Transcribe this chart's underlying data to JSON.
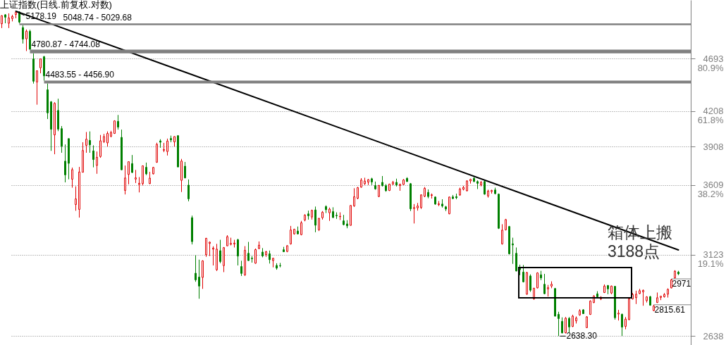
{
  "chart_data": {
    "type": "candlestick",
    "title": "上证指数(日线.前复权.对数)",
    "categories": [
      null,
      null,
      null,
      null,
      null,
      null,
      null,
      null,
      null,
      null,
      null,
      null,
      null,
      null,
      null,
      null,
      null,
      null,
      null,
      null,
      null,
      null,
      null,
      null,
      null,
      null,
      null,
      null,
      null,
      null,
      null,
      null,
      null,
      null,
      null,
      null,
      null,
      null,
      null,
      null,
      null,
      null,
      null,
      null,
      null,
      null,
      null,
      null,
      null,
      null,
      null,
      null,
      null,
      null,
      null,
      null,
      null,
      null,
      null,
      null,
      null,
      null,
      null,
      null,
      null,
      null,
      null,
      null,
      null,
      null,
      null,
      null,
      null,
      null,
      null,
      null,
      null,
      null,
      null,
      null,
      null,
      null,
      null,
      null,
      null,
      null,
      null,
      null,
      null,
      null,
      null,
      null,
      null,
      null,
      null,
      null,
      null,
      null,
      null,
      null,
      null,
      null,
      null,
      null,
      null,
      null,
      null,
      null,
      null,
      null,
      null,
      null,
      null,
      null,
      null,
      null,
      null,
      null,
      null,
      null,
      null,
      null,
      null,
      null,
      null,
      null,
      null,
      null,
      null,
      null,
      null,
      null,
      null,
      null,
      null,
      null,
      null,
      null,
      null,
      null,
      null,
      null,
      null,
      null,
      null,
      null,
      null,
      null,
      null,
      null,
      null,
      null,
      null,
      null,
      null,
      null,
      null,
      null,
      null,
      null,
      null,
      null,
      null,
      null,
      null,
      null,
      null,
      null,
      null,
      null,
      null,
      null,
      null,
      null,
      null,
      null,
      null,
      null,
      null,
      null,
      null,
      null,
      null,
      null,
      null,
      null,
      null,
      null,
      null,
      null,
      null,
      null,
      null
    ],
    "ohlc": [
      [
        5045,
        5135,
        5000,
        5130
      ],
      [
        5140,
        5147,
        5050,
        5114
      ],
      [
        5050,
        5155,
        5000,
        5106
      ],
      [
        5100,
        5140,
        5070,
        5122
      ],
      [
        5143,
        5178.19,
        5103,
        5166
      ],
      [
        5170,
        5177,
        5048.74,
        5063
      ],
      [
        5005,
        5029.68,
        4842,
        4887
      ],
      [
        4890,
        4985,
        4767,
        4968
      ],
      [
        4966,
        4983,
        4780.87,
        4785
      ],
      [
        4690,
        4744.08,
        4456,
        4478
      ],
      [
        4471,
        4577,
        4265,
        4576
      ],
      [
        4604,
        4692,
        4552,
        4690
      ],
      [
        4711,
        4720,
        4483.55,
        4528
      ],
      [
        4399,
        4456.9,
        4140,
        4193
      ],
      [
        4290,
        4297,
        3875,
        4053
      ],
      [
        4006,
        4287,
        3848,
        4277
      ],
      [
        4214,
        4318,
        4037,
        4054
      ],
      [
        4058,
        4080,
        3860,
        3913
      ],
      [
        3793,
        3927,
        3630,
        3687
      ],
      [
        3975,
        3976,
        3653,
        3776
      ],
      [
        3654,
        3743,
        3590,
        3727
      ],
      [
        3467,
        3600,
        3422,
        3507
      ],
      [
        3432,
        3748,
        3374,
        3709
      ],
      [
        3707,
        3945,
        3705,
        3878
      ],
      [
        3920,
        4030,
        3860,
        3970
      ],
      [
        3960,
        4035,
        3860,
        3924
      ],
      [
        3875,
        3920,
        3745,
        3806
      ],
      [
        3760,
        3870,
        3695,
        3823
      ],
      [
        3830,
        4005,
        3820,
        3957
      ],
      [
        3950,
        4014,
        3939,
        3992
      ],
      [
        3940,
        4035,
        3910,
        4018
      ],
      [
        3995,
        4040,
        3985,
        4026
      ],
      [
        4018,
        4129,
        4014,
        4124
      ],
      [
        4120,
        4175,
        4050,
        4071
      ],
      [
        3985,
        4050,
        3723,
        3726
      ],
      [
        3570,
        3759,
        3540,
        3663
      ],
      [
        3690,
        3790,
        3615,
        3789
      ],
      [
        3774,
        3842,
        3700,
        3706
      ],
      [
        3655,
        3725,
        3625,
        3664
      ],
      [
        3614,
        3670,
        3555,
        3623
      ],
      [
        3621,
        3757,
        3607,
        3757
      ],
      [
        3745,
        3782,
        3685,
        3695
      ],
      [
        3621,
        3710,
        3617,
        3662
      ],
      [
        3695,
        3749,
        3690,
        3744
      ],
      [
        3785,
        3941,
        3780,
        3928
      ],
      [
        3956,
        3970,
        3900,
        3945
      ],
      [
        3880,
        3940,
        3865,
        3886
      ],
      [
        3870,
        3975,
        3838,
        3955
      ],
      [
        3976,
        4000,
        3945,
        3965
      ],
      [
        3948,
        3994,
        3910,
        3992
      ],
      [
        3999,
        4004,
        3746,
        3748
      ],
      [
        3645,
        3811,
        3558,
        3794
      ],
      [
        3754,
        3787,
        3660,
        3664
      ],
      [
        3609,
        3652,
        3490,
        3508
      ],
      [
        3373,
        3388,
        3191,
        3210
      ],
      [
        3006,
        3120,
        2953,
        2965
      ],
      [
        2982,
        3092,
        2851,
        2927
      ],
      [
        2980,
        3088,
        2910,
        3084
      ],
      [
        3123,
        3235,
        3110,
        3232
      ],
      [
        3198,
        3211,
        3115,
        3206
      ],
      [
        3160,
        3179,
        3055,
        3167
      ],
      [
        3028,
        3195,
        3020,
        3160
      ],
      [
        3150,
        3222,
        3069,
        3080
      ],
      [
        3054,
        3174,
        3013,
        3170
      ],
      [
        3182,
        3253,
        3180,
        3243
      ],
      [
        3192,
        3236,
        3185,
        3198
      ],
      [
        3194,
        3222,
        3171,
        3200
      ],
      [
        3222,
        3229,
        3055,
        3115
      ],
      [
        3048,
        3085,
        2989,
        3005
      ],
      [
        2996,
        3180,
        2989,
        3152
      ],
      [
        3133,
        3208,
        3085,
        3086
      ],
      [
        3101,
        3115,
        3073,
        3098
      ],
      [
        3069,
        3164,
        3066,
        3157
      ],
      [
        3164,
        3211,
        3160,
        3186
      ],
      [
        3141,
        3167,
        3107,
        3116
      ],
      [
        3124,
        3149,
        3110,
        3143
      ],
      [
        3130,
        3151,
        3067,
        3092
      ],
      [
        3086,
        3102,
        3043,
        3101
      ],
      [
        3055,
        3069,
        3028,
        3038
      ],
      [
        3054,
        3071,
        3043,
        3053
      ],
      [
        3156,
        3175,
        3141,
        3143
      ],
      [
        3145,
        3185,
        3140,
        3183
      ],
      [
        3195,
        3316,
        3190,
        3288
      ],
      [
        3262,
        3297,
        3257,
        3293
      ],
      [
        3281,
        3312,
        3258,
        3262
      ],
      [
        3257,
        3351,
        3252,
        3338
      ],
      [
        3357,
        3398,
        3348,
        3391
      ],
      [
        3400,
        3423,
        3360,
        3387
      ],
      [
        3378,
        3430,
        3360,
        3425
      ],
      [
        3428,
        3452,
        3273,
        3321
      ],
      [
        3290,
        3370,
        3281,
        3369
      ],
      [
        3373,
        3420,
        3360,
        3412
      ],
      [
        3452,
        3461,
        3406,
        3430
      ],
      [
        3408,
        3445,
        3351,
        3434
      ],
      [
        3416,
        3447,
        3370,
        3375
      ],
      [
        3390,
        3411,
        3365,
        3387
      ],
      [
        3380,
        3411,
        3357,
        3383
      ],
      [
        3351,
        3393,
        3320,
        3325
      ],
      [
        3330,
        3356,
        3300,
        3317
      ],
      [
        3320,
        3462,
        3318,
        3460
      ],
      [
        3457,
        3586,
        3450,
        3523
      ],
      [
        3512,
        3596,
        3505,
        3590
      ],
      [
        3594,
        3662,
        3590,
        3647
      ],
      [
        3620,
        3665,
        3610,
        3640
      ],
      [
        3632,
        3655,
        3610,
        3650
      ],
      [
        3657,
        3665,
        3610,
        3633
      ],
      [
        3606,
        3636,
        3575,
        3581
      ],
      [
        3525,
        3610,
        3520,
        3607
      ],
      [
        3630,
        3678,
        3599,
        3605
      ],
      [
        3605,
        3617,
        3560,
        3568
      ],
      [
        3569,
        3620,
        3565,
        3617
      ],
      [
        3617,
        3641,
        3610,
        3631
      ],
      [
        3630,
        3658,
        3599,
        3610
      ],
      [
        3606,
        3620,
        3567,
        3616
      ],
      [
        3614,
        3655,
        3610,
        3648
      ],
      [
        3660,
        3669,
        3635,
        3636
      ],
      [
        3620,
        3625,
        3420,
        3436
      ],
      [
        3438,
        3470,
        3333,
        3445
      ],
      [
        3443,
        3478,
        3423,
        3456
      ],
      [
        3445,
        3540,
        3435,
        3537
      ],
      [
        3527,
        3595,
        3520,
        3585
      ],
      [
        3555,
        3577,
        3512,
        3525
      ],
      [
        3533,
        3547,
        3510,
        3537
      ],
      [
        3521,
        3526,
        3465,
        3470
      ],
      [
        3466,
        3492,
        3455,
        3472
      ],
      [
        3470,
        3505,
        3445,
        3456
      ],
      [
        3450,
        3457,
        3420,
        3435
      ],
      [
        3401,
        3525,
        3397,
        3521
      ],
      [
        3522,
        3536,
        3505,
        3510
      ],
      [
        3524,
        3546,
        3505,
        3516
      ],
      [
        3536,
        3590,
        3530,
        3580
      ],
      [
        3578,
        3604,
        3570,
        3592
      ],
      [
        3567,
        3645,
        3562,
        3641
      ],
      [
        3641,
        3658,
        3621,
        3652
      ],
      [
        3660,
        3678,
        3630,
        3638
      ],
      [
        3636,
        3645,
        3580,
        3623
      ],
      [
        3610,
        3641,
        3600,
        3630
      ],
      [
        3636,
        3645,
        3538,
        3542
      ],
      [
        3529,
        3575,
        3517,
        3565
      ],
      [
        3562,
        3575,
        3546,
        3569
      ],
      [
        3573,
        3590,
        3540,
        3546
      ],
      [
        3542,
        3547,
        3295,
        3300
      ],
      [
        3195,
        3328,
        3190,
        3287
      ],
      [
        3290,
        3365,
        3285,
        3360
      ],
      [
        3312,
        3316,
        3125,
        3130
      ],
      [
        3195,
        3236,
        3065,
        3188
      ],
      [
        3133,
        3171,
        3018,
        3020
      ],
      [
        3040,
        3060,
        2994,
        3028
      ],
      [
        3013,
        3058,
        2949,
        2953
      ],
      [
        2878,
        3015,
        2875,
        3010
      ],
      [
        2989,
        2999,
        2892,
        2902
      ],
      [
        2850,
        2916,
        2845,
        2914
      ],
      [
        2916,
        3012,
        2913,
        3008
      ],
      [
        2996,
        3021,
        2963,
        2977
      ],
      [
        2938,
        3002,
        2878,
        2881
      ],
      [
        2910,
        2934,
        2864,
        2917
      ],
      [
        2927,
        2956,
        2914,
        2938
      ],
      [
        2912,
        2916,
        2748,
        2750
      ],
      [
        2760,
        2775,
        2638.3,
        2736
      ],
      [
        2720,
        2743,
        2653,
        2656
      ],
      [
        2657,
        2745,
        2653,
        2738
      ],
      [
        2737,
        2745,
        2657,
        2689
      ],
      [
        2692,
        2758,
        2688,
        2750
      ],
      [
        2723,
        2748,
        2708,
        2739
      ],
      [
        2757,
        2790,
        2752,
        2781
      ],
      [
        2786,
        2790,
        2762,
        2764
      ],
      [
        2685,
        2750,
        2683,
        2746
      ],
      [
        2760,
        2842,
        2757,
        2837
      ],
      [
        2829,
        2872,
        2825,
        2867
      ],
      [
        2880,
        2896,
        2860,
        2863
      ],
      [
        2850,
        2866,
        2843,
        2860
      ],
      [
        2888,
        2937,
        2885,
        2927
      ],
      [
        2930,
        2934,
        2878,
        2910
      ],
      [
        2885,
        2930,
        2878,
        2927
      ],
      [
        2925,
        2928,
        2730,
        2741
      ],
      [
        2762,
        2786,
        2725,
        2767
      ],
      [
        2760,
        2765,
        2639,
        2688
      ],
      [
        2692,
        2745,
        2676,
        2733
      ],
      [
        2730,
        2857,
        2727,
        2850
      ],
      [
        2850,
        2885,
        2846,
        2876
      ],
      [
        2857,
        2899,
        2820,
        2878
      ],
      [
        2882,
        2910,
        2878,
        2899
      ],
      [
        2892,
        2906,
        2810,
        2901
      ],
      [
        2840,
        2866,
        2829,
        2862
      ],
      [
        2863,
        2868,
        2810,
        2813
      ],
      [
        2782,
        2815.61,
        2778,
        2808
      ],
      [
        2829,
        2888,
        2826,
        2857
      ],
      [
        2859,
        2869,
        2843,
        2866
      ],
      [
        2863,
        2885,
        2858,
        2876
      ],
      [
        2878,
        2913,
        2858,
        2907
      ],
      [
        2916,
        2971,
        2913,
        2965
      ],
      [
        2977,
        3025,
        2973,
        3019
      ],
      [
        3013,
        3021,
        2994,
        3002
      ]
    ],
    "colors": [
      "#e00000",
      "#008000",
      "#e00000",
      "#e00000",
      "#e00000",
      "#008000",
      "#008000",
      "#e00000",
      "#008000",
      "#008000",
      "#e00000",
      "#e00000",
      "#008000",
      "#008000",
      "#008000",
      "#e00000",
      "#008000",
      "#008000",
      "#008000",
      "#008000",
      "#e00000",
      "#e00000",
      "#e00000",
      "#e00000",
      "#e00000",
      "#008000",
      "#008000",
      "#e00000",
      "#e00000",
      "#e00000",
      "#e00000",
      "#e00000",
      "#e00000",
      "#008000",
      "#008000",
      "#e00000",
      "#e00000",
      "#008000",
      "#e00000",
      "#e00000",
      "#e00000",
      "#008000",
      "#e00000",
      "#e00000",
      "#e00000",
      "#008000",
      "#e00000",
      "#e00000",
      "#008000",
      "#e00000",
      "#008000",
      "#e00000",
      "#008000",
      "#008000",
      "#008000",
      "#008000",
      "#008000",
      "#e00000",
      "#e00000",
      "#e00000",
      "#e00000",
      "#e00000",
      "#008000",
      "#e00000",
      "#e00000",
      "#e00000",
      "#e00000",
      "#008000",
      "#008000",
      "#e00000",
      "#008000",
      "#008000",
      "#e00000",
      "#e00000",
      "#008000",
      "#e00000",
      "#008000",
      "#e00000",
      "#008000",
      "#008000",
      "#008000",
      "#e00000",
      "#e00000",
      "#e00000",
      "#008000",
      "#e00000",
      "#e00000",
      "#008000",
      "#e00000",
      "#008000",
      "#e00000",
      "#e00000",
      "#008000",
      "#e00000",
      "#008000",
      "#008000",
      "#e00000",
      "#008000",
      "#008000",
      "#e00000",
      "#e00000",
      "#e00000",
      "#e00000",
      "#e00000",
      "#e00000",
      "#008000",
      "#008000",
      "#e00000",
      "#008000",
      "#008000",
      "#e00000",
      "#e00000",
      "#008000",
      "#e00000",
      "#e00000",
      "#008000",
      "#008000",
      "#e00000",
      "#e00000",
      "#e00000",
      "#e00000",
      "#008000",
      "#e00000",
      "#008000",
      "#e00000",
      "#008000",
      "#008000",
      "#e00000",
      "#008000",
      "#008000",
      "#e00000",
      "#e00000",
      "#e00000",
      "#e00000",
      "#008000",
      "#008000",
      "#e00000",
      "#008000",
      "#e00000",
      "#e00000",
      "#008000",
      "#008000",
      "#e00000",
      "#e00000",
      "#008000",
      "#008000",
      "#008000",
      "#008000",
      "#008000",
      "#e00000",
      "#008000",
      "#e00000",
      "#e00000",
      "#008000",
      "#008000",
      "#e00000",
      "#e00000",
      "#008000",
      "#008000",
      "#008000",
      "#e00000",
      "#008000",
      "#e00000",
      "#e00000",
      "#e00000",
      "#008000",
      "#e00000",
      "#e00000",
      "#e00000",
      "#008000",
      "#e00000",
      "#e00000",
      "#008000",
      "#e00000",
      "#008000",
      "#e00000",
      "#008000",
      "#e00000",
      "#e00000",
      "#e00000",
      "#e00000",
      "#e00000",
      "#e00000",
      "#e00000",
      "#008000",
      "#e00000",
      "#e00000",
      "#e00000",
      "#e00000",
      "#e00000",
      "#e00000",
      "#e00000",
      "#008000"
    ],
    "series": [
      {
        "type": "line",
        "color": "#000000",
        "values": [
          null,
          null,
          null,
          null,
          5178.19,
          null,
          null,
          null,
          null,
          null,
          null,
          null,
          null,
          null,
          null,
          null,
          null,
          null,
          null,
          null,
          null,
          null,
          null,
          null,
          null,
          null,
          null,
          null,
          null,
          null,
          null,
          null,
          null,
          null,
          null,
          null,
          null,
          null,
          null,
          null,
          null,
          null,
          null,
          null,
          null,
          null,
          null,
          null,
          null,
          null,
          null,
          null,
          null,
          null,
          null,
          null,
          null,
          null,
          null,
          null,
          null,
          null,
          null,
          null,
          null,
          null,
          null,
          null,
          null,
          null,
          null,
          null,
          null,
          null,
          null,
          null,
          null,
          null,
          null,
          null,
          null,
          null,
          null,
          null,
          null,
          null,
          null,
          null,
          null,
          null,
          null,
          null,
          null,
          null,
          null,
          null,
          null,
          null,
          null,
          null,
          null,
          null,
          null,
          null,
          null,
          null,
          null,
          null,
          null,
          null,
          null,
          null,
          null,
          null,
          null,
          null,
          null,
          null,
          null,
          null,
          null,
          null,
          null,
          null,
          null,
          null,
          null,
          null,
          null,
          null,
          null,
          null,
          null,
          null,
          null,
          null,
          null,
          null,
          null,
          null,
          null,
          null,
          null,
          null,
          null,
          null,
          null,
          null,
          null,
          null,
          null,
          null,
          null,
          null,
          null,
          null,
          null,
          null,
          null,
          null,
          null,
          null,
          null,
          null,
          null,
          null,
          null,
          null,
          null,
          null,
          null,
          null,
          null,
          null,
          null,
          null,
          null,
          null,
          null,
          null,
          null,
          null,
          null,
          null,
          null,
          null,
          null,
          null,
          null,
          null,
          null,
          null,
          3155
        ]
      }
    ],
    "ylim": [
      2590,
      5300
    ],
    "yticks": [
      2638,
      {
        "value": 3123,
        "label": "3123\n19.1%"
      },
      {
        "value": 3609,
        "label": "3609\n38.2%"
      },
      3908,
      {
        "value": 4208,
        "label": "4208\n61.8%"
      },
      {
        "value": 4693,
        "label": "4693\n80.9%"
      }
    ],
    "log": true,
    "grid": "y",
    "bands": [
      {
        "axis": "y",
        "from": 5029.68,
        "to": 5048.74,
        "label": "5048.74 - 5029.68",
        "color": "#808080"
      },
      {
        "axis": "y",
        "from": 4744.08,
        "to": 4780.87,
        "label": "4780.87 - 4744.08",
        "color": "#808080"
      },
      {
        "axis": "y",
        "from": 4456.9,
        "to": 4483.55,
        "label": "4483.55 - 4456.90",
        "color": "#808080"
      }
    ],
    "annotations": [
      "5178.19",
      "2638.30",
      "2971",
      "2815.61",
      "箱体上搬 3188点"
    ]
  }
}
